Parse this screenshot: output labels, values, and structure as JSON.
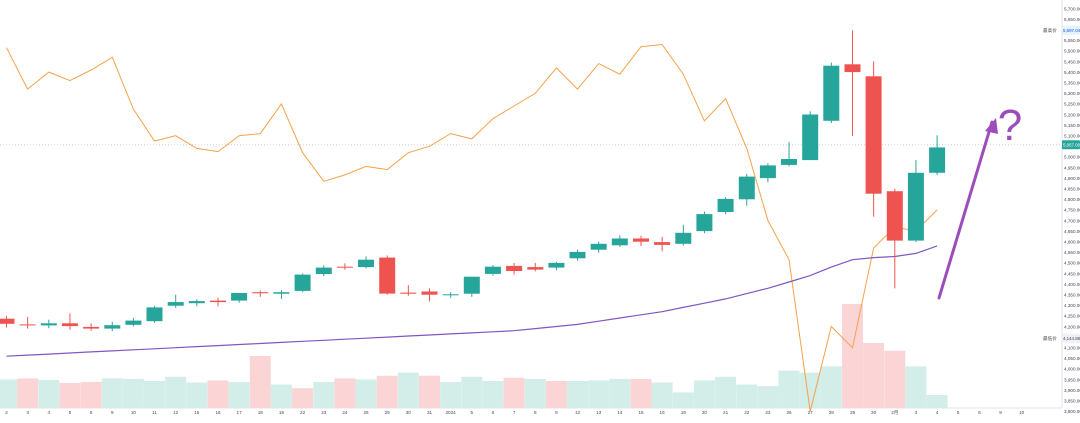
{
  "chart_data": {
    "type": "candlestick",
    "grid": false,
    "candle_colors": {
      "up": "#26a69a",
      "down": "#ef5350"
    },
    "volume_colors": {
      "up": "#d3ede9",
      "down": "#fbd5d5"
    },
    "x_tick_labels": [
      "2",
      "3",
      "4",
      "5",
      "8",
      "9",
      "10",
      "11",
      "12",
      "15",
      "16",
      "17",
      "18",
      "19",
      "22",
      "23",
      "24",
      "25",
      "29",
      "30",
      "31",
      "2024",
      "5",
      "6",
      "7",
      "8",
      "9",
      "12",
      "13",
      "14",
      "15",
      "16",
      "19",
      "20",
      "21",
      "22",
      "23",
      "26",
      "27",
      "28",
      "29",
      "30",
      "2月",
      "3",
      "4",
      "5",
      "6",
      "9",
      "10"
    ],
    "y_tick_labels": [
      "5,700.00",
      "5,650.00",
      "5,600.00",
      "5,550.00",
      "5,500.00",
      "5,450.00",
      "5,400.00",
      "5,350.00",
      "5,300.00",
      "5,250.00",
      "5,200.00",
      "5,150.00",
      "5,100.00",
      "5,050.00",
      "5,000.00",
      "4,950.00",
      "4,900.00",
      "4,850.00",
      "4,800.00",
      "4,750.00",
      "4,700.00",
      "4,650.00",
      "4,600.00",
      "4,550.00",
      "4,500.00",
      "4,450.00",
      "4,400.00",
      "4,350.00",
      "4,300.00",
      "4,250.00",
      "4,200.00",
      "4,150.00",
      "4,100.00",
      "4,050.00",
      "4,000.00",
      "3,950.00",
      "3,900.00",
      "3,850.00",
      "3,800.00"
    ],
    "markers": [
      {
        "label": "最高价",
        "value": "5,597.04",
        "y_value": 5597.04
      },
      {
        "label": "",
        "value": "5,057.00",
        "y_value": 5057
      },
      {
        "label": "最低价",
        "value": "4,144.88",
        "y_value": 4144.88
      }
    ],
    "annotation": "?",
    "candles": [
      {
        "o": 4237,
        "h": 4250,
        "l": 4195,
        "c": 4213
      },
      {
        "o": 4210,
        "h": 4245,
        "l": 4190,
        "c": 4208
      },
      {
        "o": 4205,
        "h": 4232,
        "l": 4192,
        "c": 4215
      },
      {
        "o": 4215,
        "h": 4262,
        "l": 4185,
        "c": 4202
      },
      {
        "o": 4198,
        "h": 4215,
        "l": 4180,
        "c": 4190
      },
      {
        "o": 4190,
        "h": 4222,
        "l": 4178,
        "c": 4206
      },
      {
        "o": 4208,
        "h": 4240,
        "l": 4200,
        "c": 4228
      },
      {
        "o": 4225,
        "h": 4298,
        "l": 4218,
        "c": 4290
      },
      {
        "o": 4298,
        "h": 4350,
        "l": 4288,
        "c": 4315
      },
      {
        "o": 4310,
        "h": 4328,
        "l": 4295,
        "c": 4320
      },
      {
        "o": 4322,
        "h": 4335,
        "l": 4295,
        "c": 4315
      },
      {
        "o": 4322,
        "h": 4355,
        "l": 4312,
        "c": 4358
      },
      {
        "o": 4362,
        "h": 4370,
        "l": 4340,
        "c": 4357
      },
      {
        "o": 4355,
        "h": 4372,
        "l": 4330,
        "c": 4362
      },
      {
        "o": 4368,
        "h": 4450,
        "l": 4362,
        "c": 4445
      },
      {
        "o": 4448,
        "h": 4488,
        "l": 4438,
        "c": 4478
      },
      {
        "o": 4482,
        "h": 4498,
        "l": 4468,
        "c": 4478
      },
      {
        "o": 4480,
        "h": 4530,
        "l": 4475,
        "c": 4515
      },
      {
        "o": 4525,
        "h": 4535,
        "l": 4350,
        "c": 4355
      },
      {
        "o": 4360,
        "h": 4395,
        "l": 4345,
        "c": 4355
      },
      {
        "o": 4365,
        "h": 4380,
        "l": 4318,
        "c": 4350
      },
      {
        "o": 4348,
        "h": 4362,
        "l": 4335,
        "c": 4352
      },
      {
        "o": 4355,
        "h": 4430,
        "l": 4340,
        "c": 4435
      },
      {
        "o": 4448,
        "h": 4490,
        "l": 4440,
        "c": 4482
      },
      {
        "o": 4486,
        "h": 4500,
        "l": 4445,
        "c": 4462
      },
      {
        "o": 4480,
        "h": 4500,
        "l": 4460,
        "c": 4468
      },
      {
        "o": 4478,
        "h": 4505,
        "l": 4465,
        "c": 4500
      },
      {
        "o": 4522,
        "h": 4562,
        "l": 4510,
        "c": 4552
      },
      {
        "o": 4562,
        "h": 4600,
        "l": 4548,
        "c": 4590
      },
      {
        "o": 4583,
        "h": 4630,
        "l": 4575,
        "c": 4615
      },
      {
        "o": 4615,
        "h": 4628,
        "l": 4580,
        "c": 4600
      },
      {
        "o": 4598,
        "h": 4622,
        "l": 4555,
        "c": 4585
      },
      {
        "o": 4590,
        "h": 4680,
        "l": 4582,
        "c": 4642
      },
      {
        "o": 4650,
        "h": 4742,
        "l": 4640,
        "c": 4730
      },
      {
        "o": 4740,
        "h": 4810,
        "l": 4730,
        "c": 4802
      },
      {
        "o": 4800,
        "h": 4920,
        "l": 4770,
        "c": 4907
      },
      {
        "o": 4900,
        "h": 4970,
        "l": 4880,
        "c": 4960
      },
      {
        "o": 4962,
        "h": 5070,
        "l": 4955,
        "c": 4990
      },
      {
        "o": 4985,
        "h": 5215,
        "l": 4985,
        "c": 5200
      },
      {
        "o": 5170,
        "h": 5445,
        "l": 5160,
        "c": 5430
      },
      {
        "o": 5437,
        "h": 5597,
        "l": 5100,
        "c": 5400
      },
      {
        "o": 5380,
        "h": 5450,
        "l": 4718,
        "c": 4826
      },
      {
        "o": 4838,
        "h": 4850,
        "l": 4380,
        "c": 4605
      },
      {
        "o": 4605,
        "h": 4985,
        "l": 4598,
        "c": 4925
      },
      {
        "o": 4925,
        "h": 5102,
        "l": 4915,
        "c": 5045
      }
    ],
    "volume": [
      {
        "v": 0.55,
        "dir": "up"
      },
      {
        "v": 0.57,
        "dir": "down"
      },
      {
        "v": 0.54,
        "dir": "up"
      },
      {
        "v": 0.48,
        "dir": "down"
      },
      {
        "v": 0.5,
        "dir": "down"
      },
      {
        "v": 0.57,
        "dir": "up"
      },
      {
        "v": 0.56,
        "dir": "up"
      },
      {
        "v": 0.52,
        "dir": "up"
      },
      {
        "v": 0.6,
        "dir": "up"
      },
      {
        "v": 0.49,
        "dir": "up"
      },
      {
        "v": 0.53,
        "dir": "down"
      },
      {
        "v": 0.5,
        "dir": "up"
      },
      {
        "v": 1.0,
        "dir": "down"
      },
      {
        "v": 0.45,
        "dir": "up"
      },
      {
        "v": 0.38,
        "dir": "down"
      },
      {
        "v": 0.5,
        "dir": "up"
      },
      {
        "v": 0.57,
        "dir": "down"
      },
      {
        "v": 0.55,
        "dir": "up"
      },
      {
        "v": 0.62,
        "dir": "down"
      },
      {
        "v": 0.68,
        "dir": "up"
      },
      {
        "v": 0.62,
        "dir": "down"
      },
      {
        "v": 0.5,
        "dir": "up"
      },
      {
        "v": 0.6,
        "dir": "up"
      },
      {
        "v": 0.52,
        "dir": "up"
      },
      {
        "v": 0.58,
        "dir": "down"
      },
      {
        "v": 0.56,
        "dir": "up"
      },
      {
        "v": 0.52,
        "dir": "down"
      },
      {
        "v": 0.52,
        "dir": "up"
      },
      {
        "v": 0.53,
        "dir": "up"
      },
      {
        "v": 0.56,
        "dir": "up"
      },
      {
        "v": 0.56,
        "dir": "down"
      },
      {
        "v": 0.49,
        "dir": "up"
      },
      {
        "v": 0.3,
        "dir": "up"
      },
      {
        "v": 0.53,
        "dir": "up"
      },
      {
        "v": 0.6,
        "dir": "up"
      },
      {
        "v": 0.45,
        "dir": "up"
      },
      {
        "v": 0.42,
        "dir": "up"
      },
      {
        "v": 0.72,
        "dir": "up"
      },
      {
        "v": 0.68,
        "dir": "up"
      },
      {
        "v": 0.8,
        "dir": "up"
      },
      {
        "v": 2.0,
        "dir": "down"
      },
      {
        "v": 1.25,
        "dir": "down"
      },
      {
        "v": 1.1,
        "dir": "down"
      },
      {
        "v": 0.8,
        "dir": "up"
      },
      {
        "v": 0.25,
        "dir": "up"
      }
    ],
    "overlay_orange": [
      5515,
      5320,
      5400,
      5360,
      5410,
      5470,
      5225,
      5075,
      5100,
      5040,
      5025,
      5100,
      5110,
      5250,
      5020,
      4885,
      4915,
      4955,
      4940,
      5020,
      5050,
      5110,
      5085,
      5180,
      5240,
      5300,
      5420,
      5320,
      5440,
      5390,
      5520,
      5530,
      5390,
      5170,
      5275,
      5040,
      4700,
      4515,
      3800,
      4200,
      4100,
      4570,
      4670,
      4650,
      4750
    ],
    "overlay_purple": [
      4060,
      4065,
      4070,
      4075,
      4080,
      4085,
      4090,
      4095,
      4100,
      4105,
      4110,
      4115,
      4120,
      4125,
      4130,
      4135,
      4140,
      4145,
      4150,
      4155,
      4160,
      4165,
      4170,
      4175,
      4180,
      4190,
      4200,
      4210,
      4225,
      4240,
      4255,
      4270,
      4290,
      4310,
      4330,
      4355,
      4380,
      4410,
      4440,
      4480,
      4515,
      4525,
      4530,
      4545,
      4580
    ]
  }
}
